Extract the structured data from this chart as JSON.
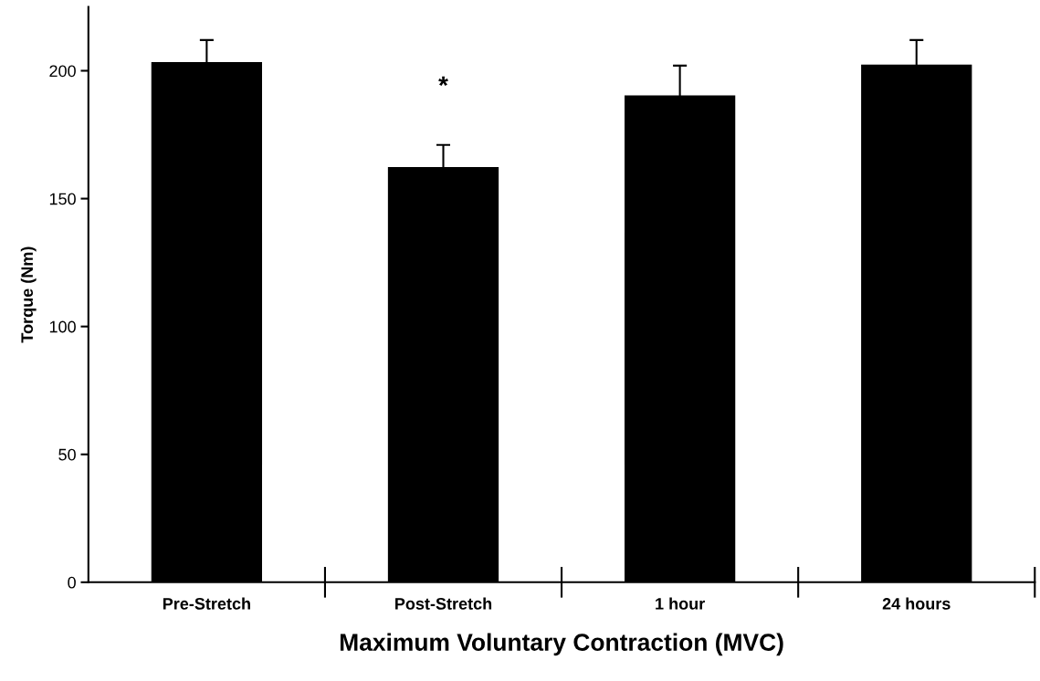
{
  "chart_data": {
    "type": "bar",
    "xlabel": "Maximum Voluntary Contraction (MVC)",
    "ylabel": "Torque (Nm)",
    "categories": [
      "Pre-Stretch",
      "Post-Stretch",
      "1 hour",
      "24 hours"
    ],
    "values": [
      203,
      162,
      190,
      202
    ],
    "errors": [
      [
        203,
        212
      ],
      [
        162,
        171
      ],
      [
        190,
        202
      ],
      [
        202,
        212
      ]
    ],
    "color": "#000000",
    "ylim": [
      0,
      225
    ],
    "yticks": [
      0,
      50,
      100,
      150,
      200
    ],
    "annotations": [
      "*"
    ],
    "grid": false
  }
}
